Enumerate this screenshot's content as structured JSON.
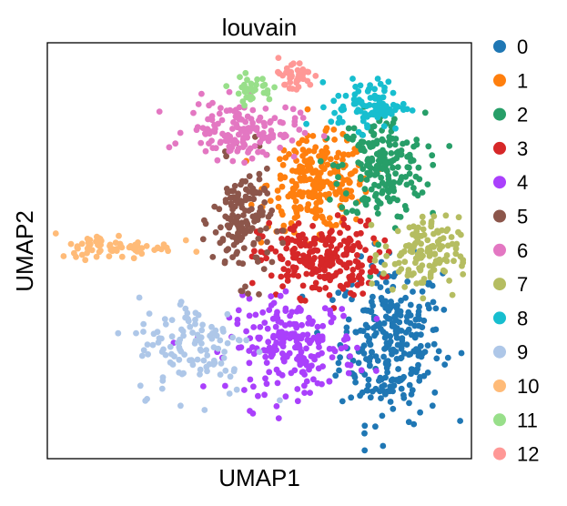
{
  "chart_data": {
    "type": "scatter",
    "title": "louvain",
    "xlabel": "UMAP1",
    "ylabel": "UMAP2",
    "xlim": [
      0,
      100
    ],
    "ylim": [
      0,
      100
    ],
    "grid": false,
    "ticks": false,
    "legend_position": "right",
    "series": [
      {
        "name": "0",
        "color": "#1f77b4",
        "center": [
          81,
          28
        ],
        "spread": [
          6.0,
          9.5
        ],
        "n": 280
      },
      {
        "name": "1",
        "color": "#ff7f0e",
        "center": [
          64,
          66
        ],
        "spread": [
          6.0,
          5.5
        ],
        "n": 240
      },
      {
        "name": "2",
        "color": "#279e68",
        "center": [
          79,
          70
        ],
        "spread": [
          5.0,
          6.5
        ],
        "n": 200
      },
      {
        "name": "3",
        "color": "#d62728",
        "center": [
          64,
          48
        ],
        "spread": [
          7.0,
          4.5
        ],
        "n": 230
      },
      {
        "name": "4",
        "color": "#aa40fc",
        "center": [
          58,
          27
        ],
        "spread": [
          7.5,
          5.5
        ],
        "n": 210
      },
      {
        "name": "5",
        "color": "#8c564b",
        "center": [
          46,
          57
        ],
        "spread": [
          3.5,
          7.0
        ],
        "n": 150
      },
      {
        "name": "6",
        "color": "#e377c2",
        "center": [
          46,
          79
        ],
        "spread": [
          6.5,
          3.5
        ],
        "n": 150
      },
      {
        "name": "7",
        "color": "#b5bd61",
        "center": [
          88,
          49
        ],
        "spread": [
          4.5,
          4.5
        ],
        "n": 130
      },
      {
        "name": "8",
        "color": "#17becf",
        "center": [
          76,
          85
        ],
        "spread": [
          4.5,
          3.0
        ],
        "n": 90
      },
      {
        "name": "9",
        "color": "#aec7e8",
        "center": [
          35,
          27
        ],
        "spread": [
          7.0,
          6.0
        ],
        "n": 120
      },
      {
        "name": "10",
        "color": "#ffbb78",
        "center": [
          16,
          51
        ],
        "spread": [
          7.0,
          1.5
        ],
        "n": 70
      },
      {
        "name": "11",
        "color": "#98df8a",
        "center": [
          48,
          89
        ],
        "spread": [
          2.5,
          1.5
        ],
        "n": 35
      },
      {
        "name": "12",
        "color": "#ff9896",
        "center": [
          58,
          92
        ],
        "spread": [
          2.5,
          2.0
        ],
        "n": 40
      }
    ]
  }
}
